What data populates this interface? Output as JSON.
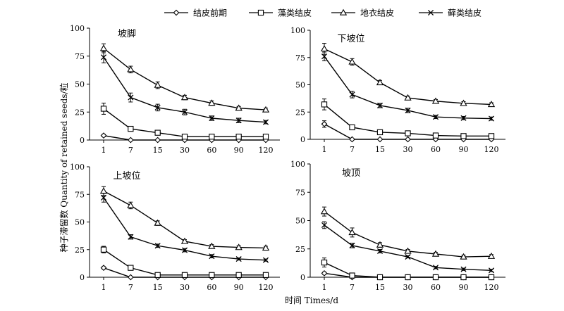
{
  "chart_data": {
    "type": "line",
    "xlabel": "时间 Times/d",
    "ylabel": "种子滞留数 Quantity of retained seeds/粒",
    "x": [
      "1",
      "7",
      "15",
      "30",
      "60",
      "90",
      "120"
    ],
    "ylim": [
      0,
      100
    ],
    "yticks": [
      0,
      25,
      50,
      75,
      100
    ],
    "legend_position": "top",
    "legend": [
      {
        "name": "结皮前期",
        "marker": "diamond"
      },
      {
        "name": "藻类结皮",
        "marker": "square"
      },
      {
        "name": "地衣结皮",
        "marker": "triangle"
      },
      {
        "name": "藓类结皮",
        "marker": "cross"
      }
    ],
    "panels": [
      {
        "title": "坡脚",
        "series": [
          {
            "name": "结皮前期",
            "values": [
              4,
              0,
              0,
              0,
              0,
              0,
              0
            ],
            "errors": [
              1,
              0,
              0,
              0,
              0,
              0,
              0
            ]
          },
          {
            "name": "藻类结皮",
            "values": [
              28,
              10,
              6.5,
              3,
              3,
              3,
              3
            ],
            "errors": [
              5,
              2,
              1,
              0.5,
              0.5,
              0.5,
              0.5
            ]
          },
          {
            "name": "地衣结皮",
            "values": [
              82,
              63,
              49,
              38,
              33,
              28.5,
              27
            ],
            "errors": [
              4,
              3,
              3,
              2,
              2,
              1.5,
              1.5
            ]
          },
          {
            "name": "藓类结皮",
            "values": [
              74,
              38,
              29,
              25,
              19.5,
              17.5,
              16
            ],
            "errors": [
              5,
              4,
              3,
              2.5,
              2,
              2,
              1.5
            ]
          }
        ]
      },
      {
        "title": "下坡位",
        "series": [
          {
            "name": "结皮前期",
            "values": [
              14,
              0,
              0,
              0,
              0,
              0,
              0
            ],
            "errors": [
              3,
              0,
              0,
              0,
              0,
              0,
              0
            ]
          },
          {
            "name": "藻类结皮",
            "values": [
              32,
              11,
              6.5,
              5.5,
              3.5,
              3,
              3
            ],
            "errors": [
              5,
              2,
              1,
              1,
              0.5,
              0.5,
              0.5
            ]
          },
          {
            "name": "地衣结皮",
            "values": [
              83,
              71,
              52,
              38,
              35,
              33,
              32
            ],
            "errors": [
              5,
              3,
              2,
              1.5,
              1.5,
              1.5,
              1.5
            ]
          },
          {
            "name": "藓类结皮",
            "values": [
              76,
              41,
              31,
              26.5,
              20.5,
              19.5,
              19
            ],
            "errors": [
              4,
              3,
              2,
              2,
              1.5,
              1.5,
              1.5
            ]
          }
        ]
      },
      {
        "title": "上坡位",
        "series": [
          {
            "name": "结皮前期",
            "values": [
              8.5,
              0,
              0,
              0,
              0,
              0,
              0
            ],
            "errors": [
              1,
              0,
              0,
              0,
              0,
              0,
              0
            ]
          },
          {
            "name": "藻类结皮",
            "values": [
              25,
              8.5,
              2,
              2,
              2,
              2,
              2
            ],
            "errors": [
              3,
              1,
              0.5,
              0.5,
              0.5,
              0.5,
              0.5
            ]
          },
          {
            "name": "地衣结皮",
            "values": [
              78,
              65,
              49,
              32.5,
              28,
              27,
              26.5
            ],
            "errors": [
              4,
              3,
              2,
              1.5,
              1.5,
              1.5,
              1.5
            ]
          },
          {
            "name": "藓类结皮",
            "values": [
              72,
              36.5,
              28.5,
              24.5,
              19,
              16.5,
              15.5
            ],
            "errors": [
              4,
              2,
              1.5,
              1.5,
              1.5,
              1,
              1
            ]
          }
        ]
      },
      {
        "title": "坡顶",
        "series": [
          {
            "name": "结皮前期",
            "values": [
              3.5,
              0,
              0,
              0,
              0,
              0,
              0
            ],
            "errors": [
              1,
              0,
              0,
              0,
              0,
              0,
              0
            ]
          },
          {
            "name": "藻类结皮",
            "values": [
              13,
              1.5,
              0,
              0,
              0,
              0,
              0
            ],
            "errors": [
              4,
              1,
              0,
              0,
              0,
              0,
              0
            ]
          },
          {
            "name": "地衣结皮",
            "values": [
              58,
              39.5,
              28.5,
              23,
              20.5,
              18,
              18.5
            ],
            "errors": [
              4,
              4,
              2,
              1.5,
              1.5,
              1.5,
              1.5
            ]
          },
          {
            "name": "藓类结皮",
            "values": [
              46,
              28,
              23,
              18,
              8.5,
              7,
              6
            ],
            "errors": [
              3,
              2,
              1.5,
              1,
              1,
              1,
              1
            ]
          }
        ]
      }
    ]
  }
}
